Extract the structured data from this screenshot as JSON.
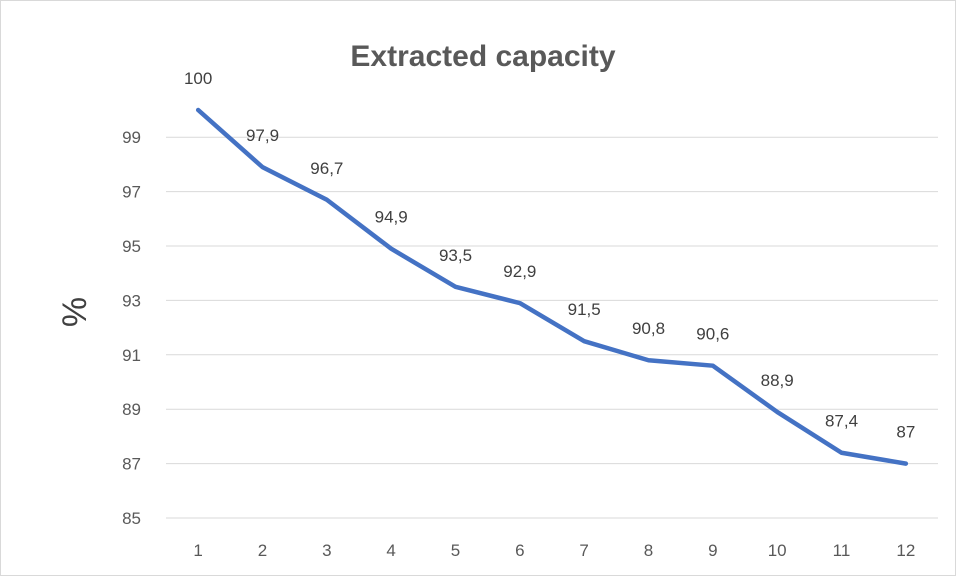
{
  "chart_data": {
    "type": "line",
    "title": "Extracted capacity",
    "xlabel": "",
    "ylabel": "%",
    "categories": [
      "1",
      "2",
      "3",
      "4",
      "5",
      "6",
      "7",
      "8",
      "9",
      "10",
      "11",
      "12"
    ],
    "series": [
      {
        "values": [
          100,
          97.9,
          96.7,
          94.9,
          93.5,
          92.9,
          91.5,
          90.8,
          90.6,
          88.9,
          87.4,
          87
        ],
        "data_labels": [
          "100",
          "97,9",
          "96,7",
          "94,9",
          "93,5",
          "92,9",
          "91,5",
          "90,8",
          "90,6",
          "88,9",
          "87,4",
          "87"
        ],
        "color": "#4472c4"
      }
    ],
    "ylim": [
      85,
      100
    ],
    "yticks": [
      "85",
      "87",
      "89",
      "91",
      "93",
      "95",
      "97",
      "99"
    ],
    "grid": true,
    "legend": "none"
  }
}
